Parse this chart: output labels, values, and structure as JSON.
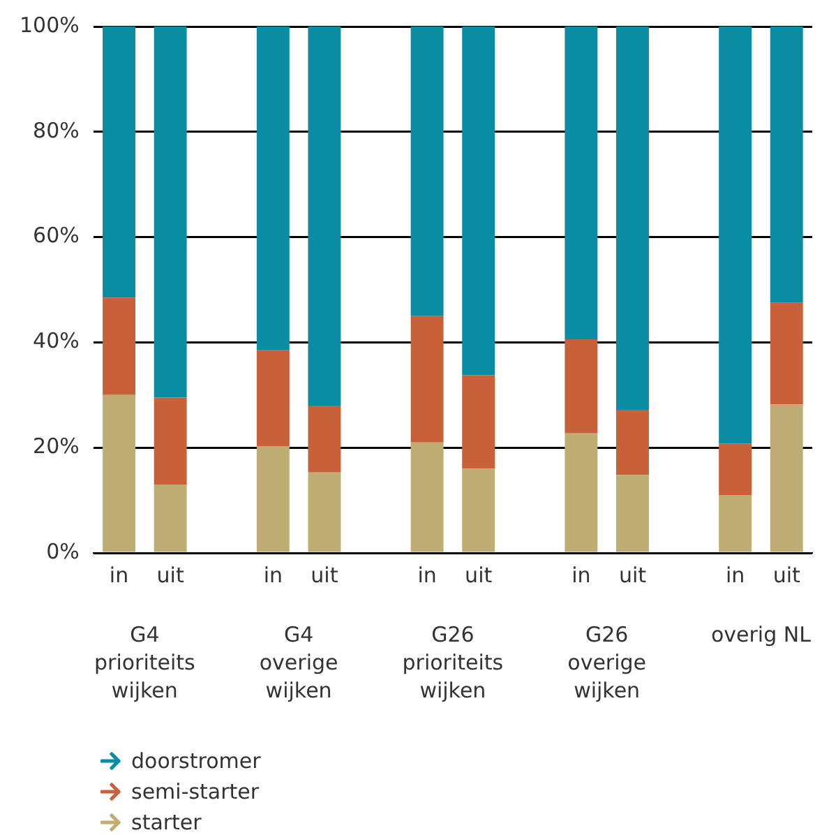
{
  "chart_data": {
    "type": "bar",
    "stacked": true,
    "categories": [
      "in",
      "uit",
      null,
      "in",
      "uit",
      null,
      "in",
      "uit",
      null,
      "in",
      "uit",
      null,
      "in",
      "uit"
    ],
    "series": [
      {
        "name": "starter",
        "color": "#bfae74",
        "values": [
          30,
          13,
          null,
          20.3,
          15.3,
          null,
          21,
          16,
          null,
          22.7,
          14.8,
          null,
          11,
          28.2
        ]
      },
      {
        "name": "semi-starter",
        "color": "#c8603a",
        "values": [
          18.5,
          16.5,
          null,
          18.2,
          12.7,
          null,
          24,
          17.8,
          null,
          17.9,
          12.4,
          null,
          9.8,
          19.3
        ]
      },
      {
        "name": "doorstromer",
        "color": "#0a8ca3",
        "values": [
          51.5,
          70.5,
          null,
          61.5,
          72,
          null,
          55,
          66.2,
          null,
          59.4,
          72.8,
          null,
          79.2,
          52.5
        ]
      }
    ],
    "ylim": [
      0,
      100
    ],
    "yticks": [
      {
        "value": 0,
        "label": "0%"
      },
      {
        "value": 20,
        "label": "20%"
      },
      {
        "value": 40,
        "label": "40%"
      },
      {
        "value": 60,
        "label": "60%"
      },
      {
        "value": 80,
        "label": "80%"
      },
      {
        "value": 100,
        "label": "100%"
      }
    ],
    "grid": "y",
    "legend": "bottom left",
    "annotations": [
      "G4\nprioriteits\nwijken",
      "G4\noverige\nwijken",
      "G26\nprioriteits\nwijken",
      "G26\noverige\nwijken",
      "overig NL"
    ]
  }
}
